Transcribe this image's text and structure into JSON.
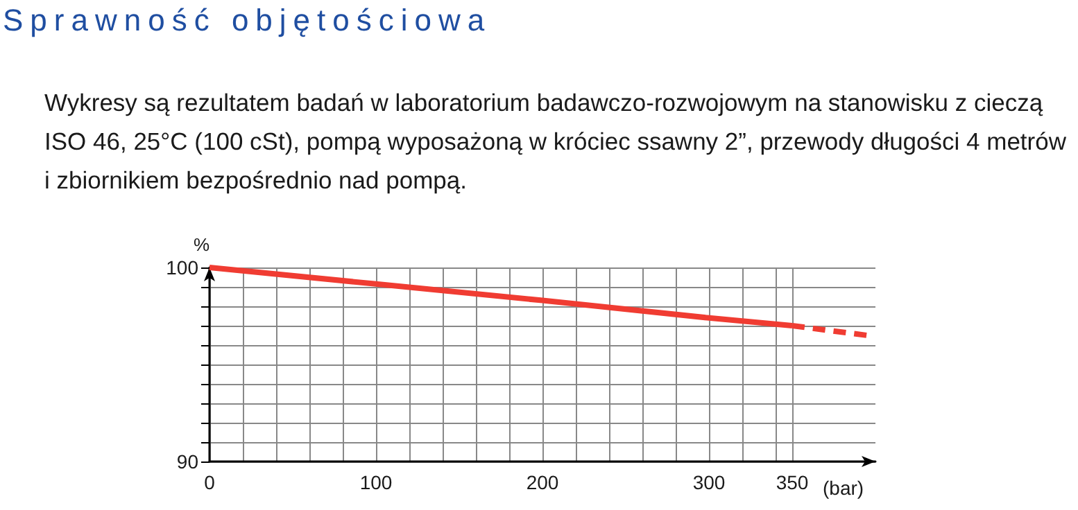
{
  "chart_data": {
    "type": "line",
    "title": "Sprawność objętościowa",
    "subtitle": "Wykresy są rezultatem badań w laboratorium badawczo-rozwojowym na stanowisku z cieczą ISO 46, 25°C (100 cSt), pompą wyposażoną w króciec ssawny 2”, przewody długości 4 metrów i zbiornikiem bezpośrednio nad pompą.",
    "xlabel": "(bar)",
    "ylabel": "%",
    "series": [
      {
        "color": "#f03c32",
        "x": [
          0,
          100,
          200,
          300,
          350
        ],
        "values": [
          100,
          99.15,
          98.3,
          97.4,
          97.0
        ],
        "line_style": "solid"
      },
      {
        "color": "#f03c32",
        "x": [
          350,
          395
        ],
        "values": [
          97.0,
          96.5
        ],
        "line_style": "dashed"
      }
    ],
    "xlim": [
      0,
      400
    ],
    "xticks": [
      0,
      {
        "value": 20,
        "label": null
      },
      {
        "value": 40,
        "label": null
      },
      {
        "value": 60,
        "label": null
      },
      {
        "value": 80,
        "label": null
      },
      100,
      {
        "value": 120,
        "label": null
      },
      {
        "value": 140,
        "label": null
      },
      {
        "value": 160,
        "label": null
      },
      {
        "value": 180,
        "label": null
      },
      200,
      {
        "value": 220,
        "label": null
      },
      {
        "value": 240,
        "label": null
      },
      {
        "value": 260,
        "label": null
      },
      {
        "value": 280,
        "label": null
      },
      300,
      {
        "value": 320,
        "label": null
      },
      {
        "value": 340,
        "label": null
      },
      350
    ],
    "ylim": [
      90,
      100
    ],
    "yticks": [
      90,
      {
        "value": 91,
        "label": null
      },
      {
        "value": 92,
        "label": null
      },
      {
        "value": 93,
        "label": null
      },
      {
        "value": 94,
        "label": null
      },
      {
        "value": 95,
        "label": null
      },
      {
        "value": 96,
        "label": null
      },
      {
        "value": 97,
        "label": null
      },
      {
        "value": 98,
        "label": null
      },
      {
        "value": 99,
        "label": null
      },
      100
    ],
    "grid": true,
    "marker": "none"
  }
}
